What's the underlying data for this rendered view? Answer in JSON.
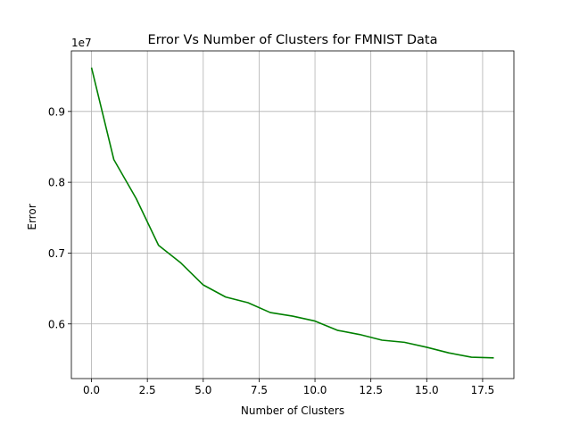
{
  "chart_data": {
    "type": "line",
    "title": "Error Vs Number of Clusters for FMNIST Data",
    "xlabel": "Number of Clusters",
    "ylabel": "Error",
    "y_offset_label": "1e7",
    "xlim": [
      -0.9,
      18.9
    ],
    "ylim": [
      0.5228,
      0.9855
    ],
    "x_ticks": [
      0,
      2.5,
      5,
      7.5,
      10,
      12.5,
      15,
      17.5
    ],
    "x_tick_labels": [
      "0.0",
      "2.5",
      "5.0",
      "7.5",
      "10.0",
      "12.5",
      "15.0",
      "17.5"
    ],
    "y_ticks": [
      0.6,
      0.7,
      0.8,
      0.9
    ],
    "y_tick_labels": [
      "0.6",
      "0.7",
      "0.8",
      "0.9"
    ],
    "grid": true,
    "series": [
      {
        "color": "#008000",
        "x": [
          0,
          1,
          2,
          3,
          4,
          5,
          6,
          7,
          8,
          9,
          10,
          11,
          12,
          13,
          14,
          15,
          16,
          17,
          18
        ],
        "y": [
          0.962,
          0.832,
          0.777,
          0.711,
          0.686,
          0.655,
          0.638,
          0.63,
          0.616,
          0.611,
          0.604,
          0.591,
          0.585,
          0.577,
          0.574,
          0.567,
          0.559,
          0.553,
          0.552
        ]
      }
    ]
  }
}
